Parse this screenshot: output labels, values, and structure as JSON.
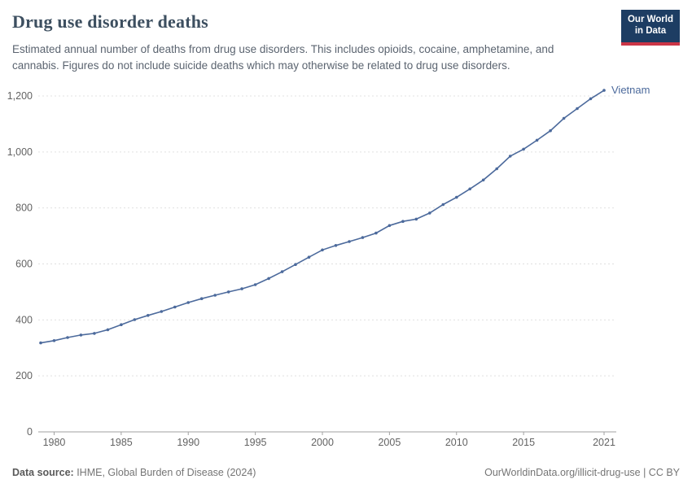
{
  "header": {
    "title": "Drug use disorder deaths",
    "subtitle": "Estimated annual number of deaths from drug use disorders. This includes opioids, cocaine, amphetamine, and cannabis. Figures do not include suicide deaths which may otherwise be related to drug use disorders.",
    "logo": {
      "line1": "Our World",
      "line2": "in Data"
    }
  },
  "colors": {
    "logo_bg": "#1d3d63",
    "logo_accent": "#cb3546",
    "series_blue": "#4C6A9C",
    "gridline": "#e0e0e0",
    "axis": "#a1a1a1",
    "tick_text": "#636363"
  },
  "chart_data": {
    "type": "line",
    "title": "Drug use disorder deaths",
    "xlabel": "",
    "ylabel": "",
    "xlim": [
      1979,
      2021
    ],
    "ylim": [
      0,
      1250
    ],
    "grid": "horizontal-dashed",
    "legend_position": "end-of-line-label",
    "xticks": [
      1980,
      1985,
      1990,
      1995,
      2000,
      2005,
      2010,
      2015,
      2021
    ],
    "yticks": [
      0,
      200,
      400,
      600,
      800,
      1000,
      1200
    ],
    "x": [
      1979,
      1980,
      1981,
      1982,
      1983,
      1984,
      1985,
      1986,
      1987,
      1988,
      1989,
      1990,
      1991,
      1992,
      1993,
      1994,
      1995,
      1996,
      1997,
      1998,
      1999,
      2000,
      2001,
      2002,
      2003,
      2004,
      2005,
      2006,
      2007,
      2008,
      2009,
      2010,
      2011,
      2012,
      2013,
      2014,
      2015,
      2016,
      2017,
      2018,
      2019,
      2020,
      2021
    ],
    "series": [
      {
        "name": "Vietnam",
        "color": "#4C6A9C",
        "values": [
          318,
          326,
          337,
          346,
          352,
          365,
          383,
          401,
          416,
          430,
          446,
          462,
          476,
          488,
          500,
          511,
          526,
          548,
          572,
          598,
          624,
          650,
          666,
          680,
          694,
          710,
          737,
          752,
          760,
          782,
          812,
          838,
          868,
          900,
          940,
          985,
          1010,
          1042,
          1076,
          1120,
          1155,
          1190,
          1220
        ]
      }
    ]
  },
  "footer": {
    "source_label": "Data source:",
    "source_text": " IHME, Global Burden of Disease (2024)",
    "credit": "OurWorldinData.org/illicit-drug-use | CC BY"
  }
}
